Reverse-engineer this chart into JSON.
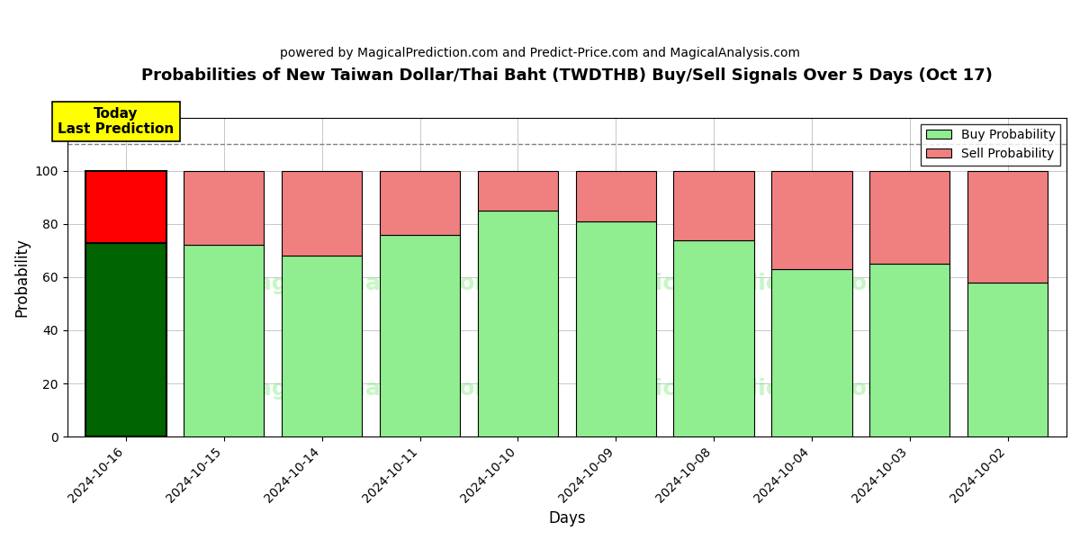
{
  "title": "Probabilities of New Taiwan Dollar/Thai Baht (TWDTHB) Buy/Sell Signals Over 5 Days (Oct 17)",
  "subtitle": "powered by MagicalPrediction.com and Predict-Price.com and MagicalAnalysis.com",
  "xlabel": "Days",
  "ylabel": "Probability",
  "categories": [
    "2024-10-16",
    "2024-10-15",
    "2024-10-14",
    "2024-10-11",
    "2024-10-10",
    "2024-10-09",
    "2024-10-08",
    "2024-10-04",
    "2024-10-03",
    "2024-10-02"
  ],
  "buy_values": [
    73,
    72,
    68,
    76,
    85,
    81,
    74,
    63,
    65,
    58
  ],
  "sell_values": [
    27,
    28,
    32,
    24,
    15,
    19,
    26,
    37,
    35,
    42
  ],
  "today_buy_color": "#006400",
  "today_sell_color": "#FF0000",
  "buy_color": "#90EE90",
  "sell_color": "#F08080",
  "today_annotation_bg": "#FFFF00",
  "today_annotation_text": "Today\nLast Prediction",
  "dashed_line_y": 110,
  "ylim": [
    0,
    120
  ],
  "yticks": [
    0,
    20,
    40,
    60,
    80,
    100
  ],
  "legend_buy_label": "Buy Probability",
  "legend_sell_label": "Sell Probability",
  "bar_edge_color": "#000000",
  "bar_linewidth": 0.8,
  "today_bar_linewidth": 1.5,
  "figsize": [
    12,
    6
  ],
  "dpi": 100
}
